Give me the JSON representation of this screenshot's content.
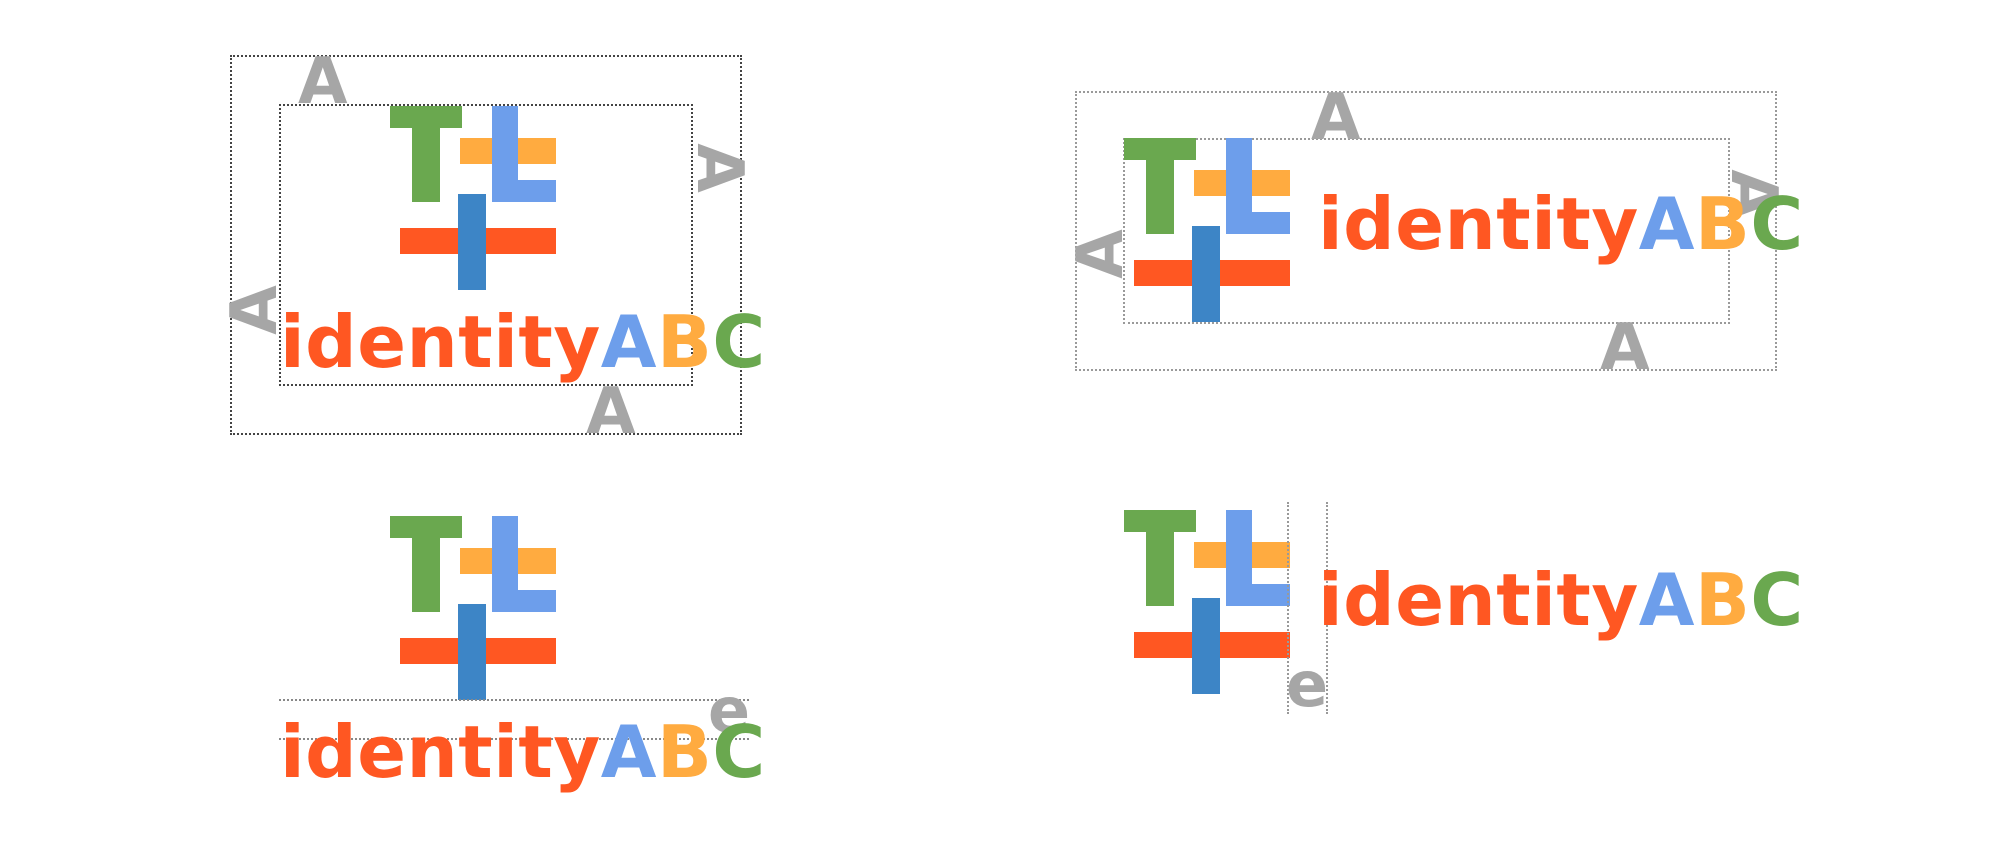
{
  "colors": {
    "green": "#6aa84f",
    "orange": "#ffab40",
    "light_blue": "#6d9eeb",
    "dark_blue": "#3d85c6",
    "red_orange": "#ff5722",
    "grey": "#a6a6a6"
  },
  "logo": {
    "mark_letters": [
      "T",
      "L"
    ],
    "wordmark_prefix": "identity",
    "wordmark_letters": [
      "A",
      "B",
      "C"
    ]
  },
  "clearspace_label": "A",
  "spacing_label": "e"
}
